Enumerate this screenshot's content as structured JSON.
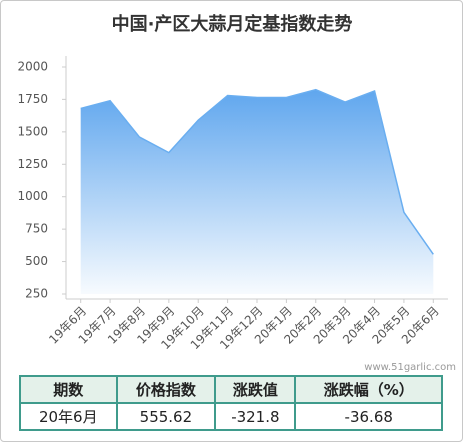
{
  "chart_data": {
    "type": "area",
    "title": "中国·产区大蒜月定基指数走势",
    "categories": [
      "19年6月",
      "19年7月",
      "19年8月",
      "19年9月",
      "19年10月",
      "19年11月",
      "19年12月",
      "20年1月",
      "20年2月",
      "20年3月",
      "20年4月",
      "20年5月",
      "20年6月"
    ],
    "values": [
      1680,
      1740,
      1460,
      1340,
      1590,
      1780,
      1765,
      1765,
      1825,
      1730,
      1815,
      880,
      555.62
    ],
    "color": "#6aaef0",
    "ylim": [
      250,
      2000
    ],
    "yticks": [
      250,
      500,
      750,
      1000,
      1250,
      1500,
      1750,
      2000
    ]
  },
  "watermark": "www.51garlic.com",
  "table": {
    "header": [
      "期数",
      "价格指数",
      "涨跌值",
      "涨跌幅（%）"
    ],
    "rows": [
      [
        "20年6月",
        555.62,
        -321.8,
        -36.68
      ]
    ]
  }
}
